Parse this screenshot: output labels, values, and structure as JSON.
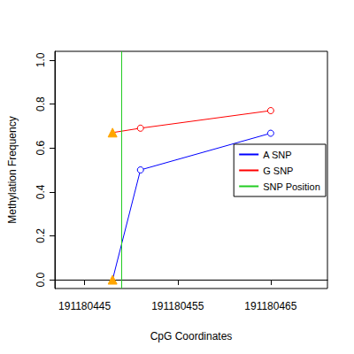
{
  "chart_data": {
    "type": "line",
    "x_label": "CpG Coordinates",
    "y_label": "Methylation Frequency",
    "series": [
      {
        "name": "A SNP",
        "color": "#0000ff",
        "x": [
          191180448,
          191180451,
          191180465
        ],
        "values": [
          0,
          0.5,
          0.667
        ]
      },
      {
        "name": "G SNP",
        "color": "#ff0000",
        "x": [
          191180448,
          191180451,
          191180465
        ],
        "values": [
          0.67,
          0.69,
          0.77
        ]
      }
    ],
    "snp_position": {
      "name": "SNP Position",
      "x": 191180449,
      "color": "#22cc22"
    },
    "xlim": [
      191180441.8,
      191180471.1
    ],
    "xticks": [
      191180445,
      191180455,
      191180465
    ],
    "ylim": [
      -0.04,
      1.04
    ],
    "yticks": [
      {
        "value": 0,
        "label": "0.0"
      },
      0.2,
      0.4,
      0.6,
      0.8,
      {
        "value": 1,
        "label": "1.0"
      }
    ],
    "legend": "right",
    "grid": false
  }
}
